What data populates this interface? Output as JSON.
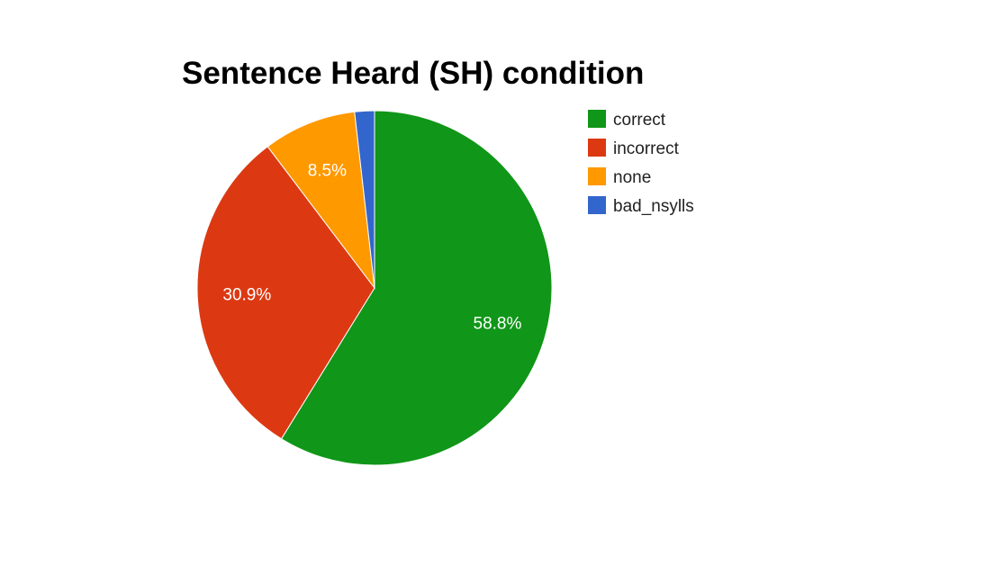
{
  "chart_data": {
    "type": "pie",
    "title": "Sentence Heard (SH) condition",
    "categories": [
      "correct",
      "incorrect",
      "none",
      "bad_nsylls"
    ],
    "values": [
      58.8,
      30.9,
      8.5,
      1.8
    ],
    "labels": [
      "58.8%",
      "30.9%",
      "8.5%",
      ""
    ],
    "colors": [
      "#109618",
      "#dc3912",
      "#ff9900",
      "#3366cc"
    ],
    "legend_position": "right"
  }
}
